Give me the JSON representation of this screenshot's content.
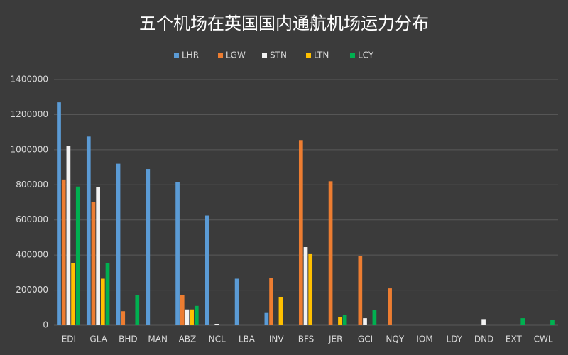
{
  "chart_data": {
    "type": "bar",
    "title": "五个机场在英国国内通航机场运力分布",
    "categories": [
      "EDI",
      "GLA",
      "BHD",
      "MAN",
      "ABZ",
      "NCL",
      "LBA",
      "INV",
      "BFS",
      "JER",
      "GCI",
      "NQY",
      "IOM",
      "LDY",
      "DND",
      "EXT",
      "CWL"
    ],
    "series": [
      {
        "name": "LHR",
        "color": "#5b9bd5",
        "values": [
          1270000,
          1075000,
          920000,
          890000,
          815000,
          625000,
          265000,
          70000,
          0,
          0,
          0,
          0,
          0,
          0,
          0,
          0,
          0
        ]
      },
      {
        "name": "LGW",
        "color": "#ed7d31",
        "values": [
          830000,
          700000,
          80000,
          0,
          170000,
          0,
          0,
          270000,
          1055000,
          820000,
          395000,
          210000,
          0,
          0,
          0,
          0,
          0
        ]
      },
      {
        "name": "STN",
        "color": "#f2f2f2",
        "values": [
          1020000,
          785000,
          0,
          0,
          90000,
          5000,
          0,
          0,
          445000,
          0,
          40000,
          0,
          0,
          0,
          35000,
          0,
          0
        ]
      },
      {
        "name": "LTN",
        "color": "#ffc000",
        "values": [
          355000,
          265000,
          0,
          0,
          90000,
          0,
          0,
          160000,
          405000,
          45000,
          0,
          0,
          0,
          0,
          0,
          0,
          0
        ]
      },
      {
        "name": "LCY",
        "color": "#00b050",
        "values": [
          790000,
          355000,
          170000,
          0,
          110000,
          0,
          0,
          0,
          0,
          60000,
          85000,
          0,
          0,
          0,
          0,
          40000,
          30000
        ]
      }
    ],
    "ylim": [
      0,
      1400000
    ],
    "yticks": [
      0,
      200000,
      400000,
      600000,
      800000,
      1000000,
      1200000,
      1400000
    ],
    "grid": true
  }
}
